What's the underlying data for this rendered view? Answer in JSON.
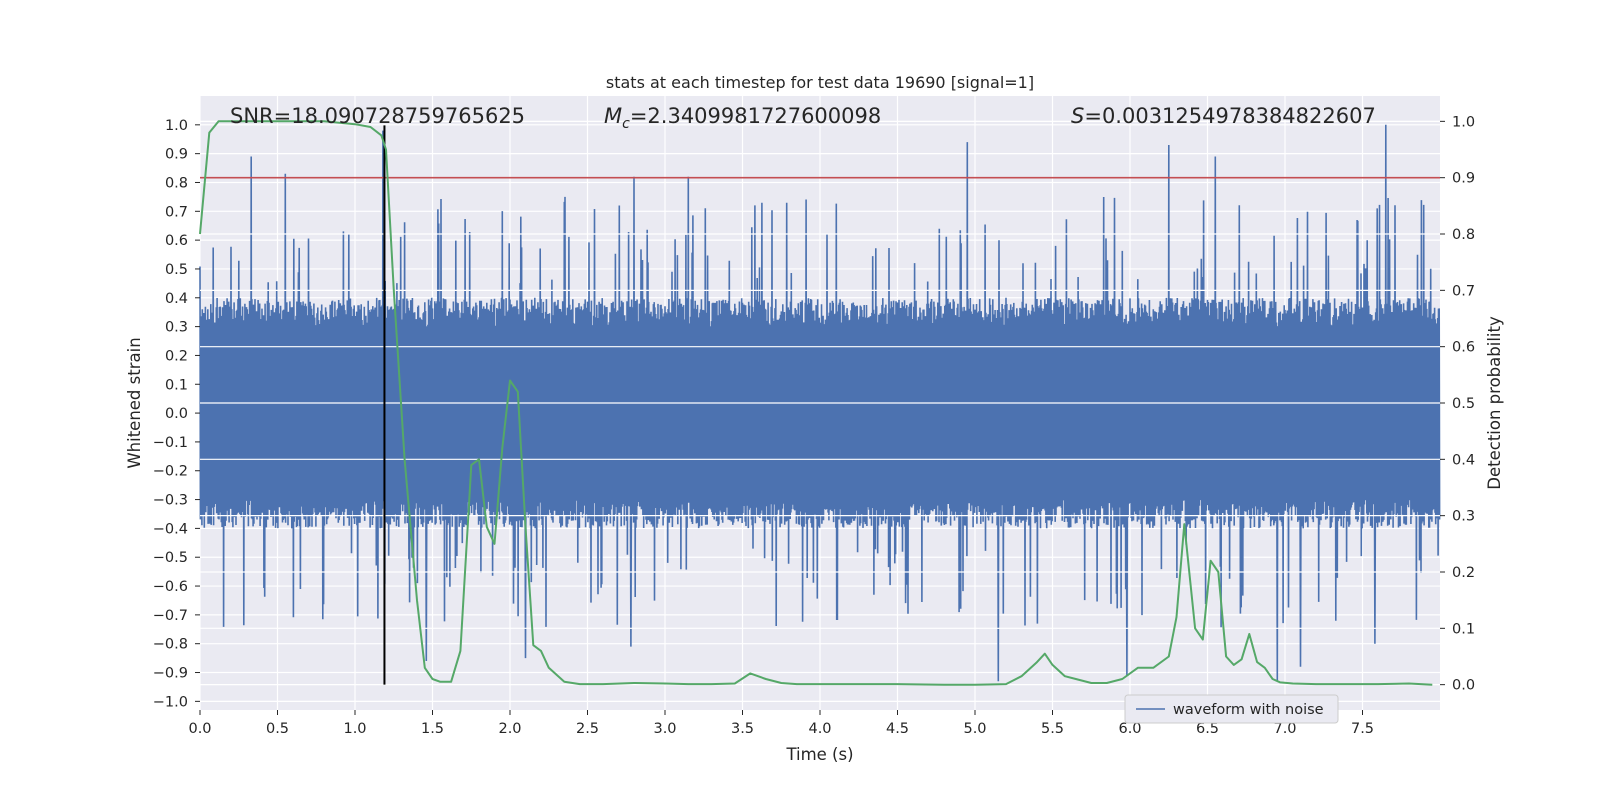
{
  "colors": {
    "background": "#eaeaf2",
    "grid": "#ffffff",
    "waveform": "#4c72b0",
    "probability": "#55a868",
    "threshold": "#c44e52",
    "marker": "#000000",
    "text": "#262626"
  },
  "chart_data": {
    "type": "line",
    "title": "stats at each timestep for test data 19690 [signal=1]",
    "xlabel": "Time (s)",
    "ylabel_left": "Whitened strain",
    "ylabel_right": "Detection probability",
    "xlim": [
      0.0,
      8.0
    ],
    "ylim_left": [
      -1.03,
      1.1
    ],
    "ylim_right": [
      -0.045,
      1.045
    ],
    "grid": true,
    "legend_position": "lower-right",
    "x_ticks": [
      "0.0",
      "0.5",
      "1.0",
      "1.5",
      "2.0",
      "2.5",
      "3.0",
      "3.5",
      "4.0",
      "4.5",
      "5.0",
      "5.5",
      "6.0",
      "6.5",
      "7.0",
      "7.5"
    ],
    "y_left_ticks": [
      "1.0",
      "0.9",
      "0.8",
      "0.7",
      "0.6",
      "0.5",
      "0.4",
      "0.3",
      "0.2",
      "0.1",
      "0.0",
      "−0.1",
      "−0.2",
      "−0.3",
      "−0.4",
      "−0.5",
      "−0.6",
      "−0.7",
      "−0.8",
      "−0.9",
      "−1.0"
    ],
    "y_right_ticks": [
      "1.0",
      "0.9",
      "0.8",
      "0.7",
      "0.6",
      "0.5",
      "0.4",
      "0.3",
      "0.2",
      "0.1",
      "0.0"
    ],
    "annotations": {
      "snr": "SNR=18.090728759765625",
      "mc_symbol": "M",
      "mc_subscript": "c",
      "mc_value": "=2.3409981727600098",
      "s_symbol": "S",
      "s_value": "=0.0031254978384822607"
    },
    "threshold_probability": 0.9,
    "event_marker_time": 1.19,
    "waveform": {
      "name": "waveform with noise",
      "samples_per_second": 2048,
      "typical_amplitude": 0.4,
      "peaks": [
        {
          "t": 0.33,
          "v": 0.89
        },
        {
          "t": 0.55,
          "v": 0.83
        },
        {
          "t": 1.18,
          "v": 0.98
        },
        {
          "t": 2.8,
          "v": 0.82
        },
        {
          "t": 3.15,
          "v": 0.82
        },
        {
          "t": 4.95,
          "v": 0.94
        },
        {
          "t": 6.25,
          "v": 0.93
        },
        {
          "t": 6.55,
          "v": 0.89
        },
        {
          "t": 7.65,
          "v": 1.0
        },
        {
          "t": 1.46,
          "v": -0.86
        },
        {
          "t": 2.1,
          "v": -0.85
        },
        {
          "t": 2.78,
          "v": -0.81
        },
        {
          "t": 5.15,
          "v": -0.93
        },
        {
          "t": 5.98,
          "v": -0.91
        },
        {
          "t": 6.95,
          "v": -0.93
        },
        {
          "t": 7.1,
          "v": -0.88
        },
        {
          "t": 7.58,
          "v": -0.8
        }
      ]
    },
    "probability": {
      "name": "detection probability",
      "t": [
        0.0,
        0.06,
        0.12,
        0.3,
        0.5,
        0.8,
        1.0,
        1.1,
        1.17,
        1.2,
        1.25,
        1.32,
        1.4,
        1.45,
        1.5,
        1.55,
        1.62,
        1.68,
        1.75,
        1.8,
        1.85,
        1.9,
        1.95,
        2.0,
        2.05,
        2.1,
        2.15,
        2.2,
        2.25,
        2.35,
        2.45,
        2.6,
        2.8,
        3.0,
        3.15,
        3.3,
        3.45,
        3.55,
        3.65,
        3.75,
        3.85,
        4.0,
        4.2,
        4.5,
        4.8,
        5.0,
        5.2,
        5.3,
        5.4,
        5.45,
        5.5,
        5.58,
        5.65,
        5.75,
        5.85,
        5.95,
        6.05,
        6.15,
        6.25,
        6.3,
        6.35,
        6.42,
        6.47,
        6.52,
        6.57,
        6.62,
        6.67,
        6.72,
        6.77,
        6.82,
        6.87,
        6.92,
        6.97,
        7.05,
        7.2,
        7.4,
        7.6,
        7.8,
        7.95
      ],
      "values": [
        0.8,
        0.98,
        1.0,
        1.0,
        1.0,
        1.0,
        0.995,
        0.99,
        0.975,
        0.95,
        0.7,
        0.4,
        0.15,
        0.03,
        0.01,
        0.005,
        0.005,
        0.06,
        0.39,
        0.4,
        0.28,
        0.25,
        0.42,
        0.54,
        0.52,
        0.28,
        0.07,
        0.06,
        0.03,
        0.005,
        0.001,
        0.001,
        0.003,
        0.002,
        0.001,
        0.001,
        0.002,
        0.02,
        0.01,
        0.003,
        0.001,
        0.001,
        0.001,
        0.001,
        0.0,
        0.0,
        0.001,
        0.015,
        0.04,
        0.055,
        0.035,
        0.015,
        0.01,
        0.003,
        0.003,
        0.01,
        0.03,
        0.03,
        0.05,
        0.12,
        0.285,
        0.1,
        0.08,
        0.22,
        0.2,
        0.05,
        0.035,
        0.045,
        0.09,
        0.04,
        0.03,
        0.01,
        0.004,
        0.002,
        0.001,
        0.001,
        0.001,
        0.002,
        0.0
      ]
    }
  }
}
